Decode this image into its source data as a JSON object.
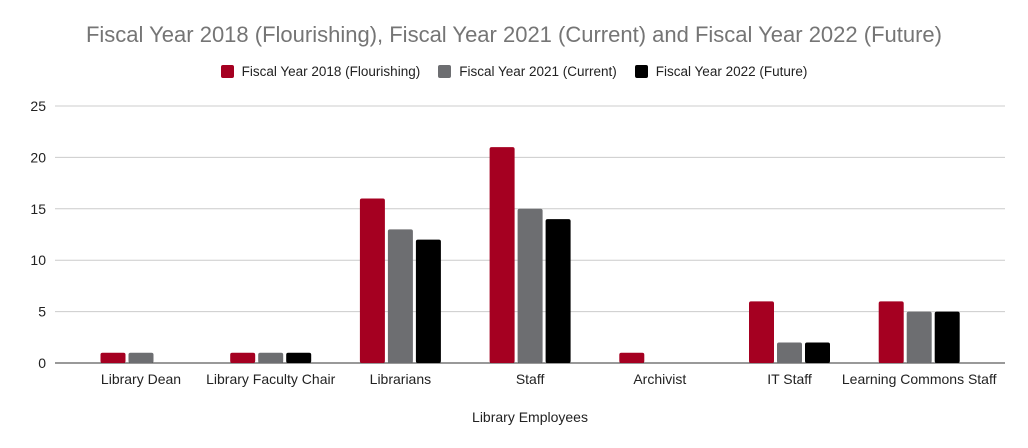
{
  "chart_data": {
    "type": "bar",
    "title": "Fiscal Year 2018 (Flourishing), Fiscal Year 2021 (Current) and Fiscal Year 2022 (Future)",
    "xlabel": "Library Employees",
    "ylabel": "",
    "ylim": [
      0,
      25
    ],
    "yticks": [
      0,
      5,
      10,
      15,
      20,
      25
    ],
    "grid": true,
    "legend_position": "top",
    "categories": [
      "Library Dean",
      "Library Faculty Chair",
      "Librarians",
      "Staff",
      "Archivist",
      "IT Staff",
      "Learning Commons Staff"
    ],
    "series": [
      {
        "name": "Fiscal Year 2018 (Flourishing)",
        "color": "#a50021",
        "values": [
          1,
          1,
          16,
          21,
          1,
          6,
          6
        ]
      },
      {
        "name": "Fiscal Year 2021 (Current)",
        "color": "#6d6e71",
        "values": [
          1,
          1,
          13,
          15,
          0,
          2,
          5
        ]
      },
      {
        "name": "Fiscal Year 2022 (Future)",
        "color": "#000000",
        "values": [
          0,
          1,
          12,
          14,
          0,
          2,
          5
        ]
      }
    ]
  }
}
